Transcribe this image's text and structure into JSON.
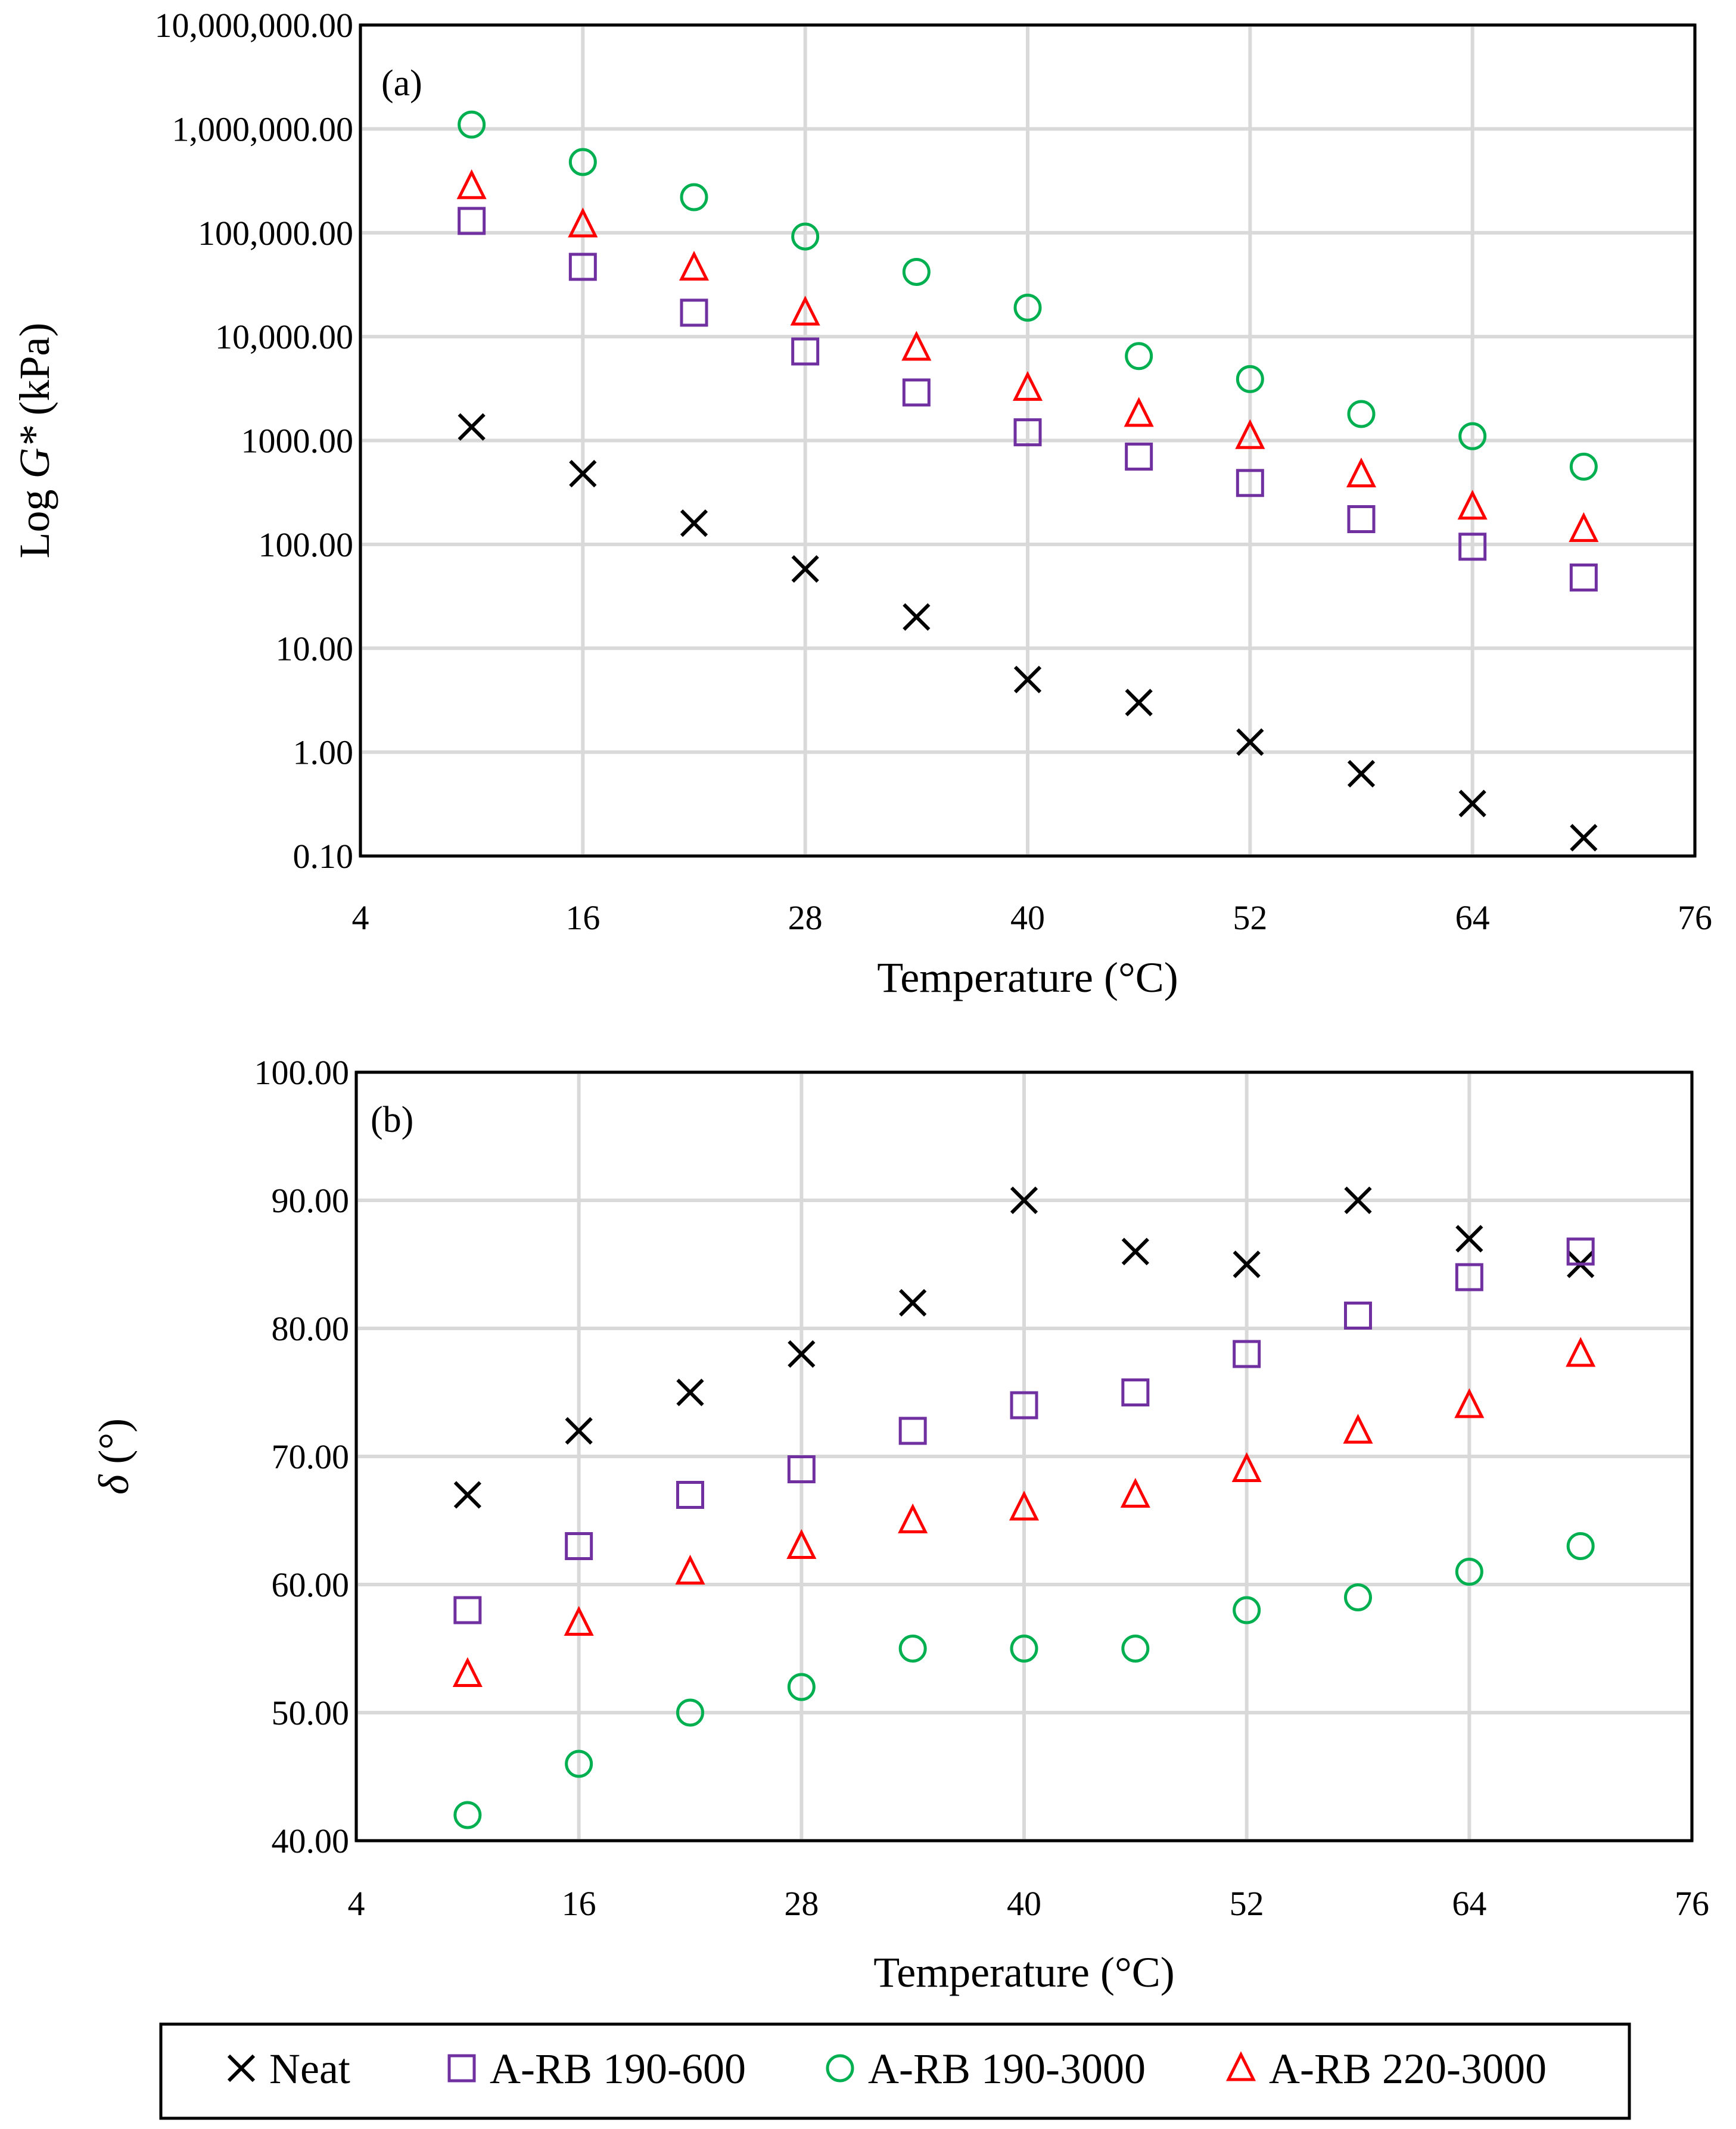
{
  "colors": {
    "Neat": "#000000",
    "A-RB 190-600": "#7030a0",
    "A-RB 190-3000": "#00b050",
    "A-RB 220-3000": "#ff0000",
    "grid": "#d9d9d9"
  },
  "legend": {
    "placement": "bottom-center",
    "entries": [
      {
        "name": "Neat",
        "marker": "x"
      },
      {
        "name": "A-RB 190-600",
        "marker": "square"
      },
      {
        "name": "A-RB 190-3000",
        "marker": "circle"
      },
      {
        "name": "A-RB 220-3000",
        "marker": "triangle"
      }
    ]
  },
  "chart_data": [
    {
      "type": "scatter",
      "panel_label": "(a)",
      "ylabel_prefix": "Log ",
      "ylabel_symbol": "G*",
      "ylabel_suffix": " (kPa)",
      "xlabel": "Temperature (°C)",
      "xlim": [
        4,
        76
      ],
      "xticks": [
        4,
        16,
        28,
        40,
        52,
        64,
        76
      ],
      "yscale": "log",
      "ylim": [
        0.1,
        10000000
      ],
      "yticks": [
        0.1,
        1,
        10,
        100,
        1000,
        10000,
        100000,
        1000000,
        10000000
      ],
      "yticklabels": [
        "0.10",
        "1.00",
        "10.00",
        "100.00",
        "1000.00",
        "10,000.00",
        "100,000.00",
        "1,000,000.00",
        "10,000,000.00"
      ],
      "grid": true,
      "x": [
        10,
        16,
        22,
        28,
        34,
        40,
        46,
        52,
        58,
        64,
        70
      ],
      "series": [
        {
          "name": "Neat",
          "marker": "x",
          "values": [
            1350,
            480,
            160,
            58,
            20,
            5,
            3,
            1.25,
            0.62,
            0.32,
            0.15
          ]
        },
        {
          "name": "A-RB 190-600",
          "marker": "square",
          "values": [
            130000,
            47000,
            17000,
            7200,
            2900,
            1200,
            700,
            390,
            175,
            95,
            48
          ]
        },
        {
          "name": "A-RB 190-3000",
          "marker": "circle",
          "values": [
            1100000,
            480000,
            220000,
            92000,
            42000,
            19000,
            6500,
            3900,
            1800,
            1100,
            560
          ]
        },
        {
          "name": "A-RB 220-3000",
          "marker": "triangle",
          "values": [
            280000,
            120000,
            46000,
            17000,
            7800,
            3200,
            1800,
            1100,
            470,
            230,
            140
          ]
        }
      ]
    },
    {
      "type": "scatter",
      "panel_label": "(b)",
      "ylabel_symbol": "δ",
      "ylabel_suffix": " (°)",
      "xlabel": "Temperature (°C)",
      "xlim": [
        4,
        76
      ],
      "xticks": [
        4,
        16,
        28,
        40,
        52,
        64,
        76
      ],
      "yscale": "linear",
      "ylim": [
        40,
        100
      ],
      "yticks": [
        40,
        50,
        60,
        70,
        80,
        90,
        100
      ],
      "yticklabels": [
        "40.00",
        "50.00",
        "60.00",
        "70.00",
        "80.00",
        "90.00",
        "100.00"
      ],
      "grid": true,
      "x": [
        10,
        16,
        22,
        28,
        34,
        40,
        46,
        52,
        58,
        64,
        70
      ],
      "series": [
        {
          "name": "Neat",
          "marker": "x",
          "values": [
            67,
            72,
            75,
            78,
            82,
            90,
            86,
            85,
            90,
            87,
            85
          ]
        },
        {
          "name": "A-RB 190-600",
          "marker": "square",
          "values": [
            58,
            63,
            67,
            69,
            72,
            74,
            75,
            78,
            81,
            84,
            86
          ]
        },
        {
          "name": "A-RB 190-3000",
          "marker": "circle",
          "values": [
            42,
            46,
            50,
            52,
            55,
            55,
            55,
            58,
            59,
            61,
            63
          ]
        },
        {
          "name": "A-RB 220-3000",
          "marker": "triangle",
          "values": [
            53,
            57,
            61,
            63,
            65,
            66,
            67,
            69,
            72,
            74,
            78
          ]
        }
      ]
    }
  ]
}
